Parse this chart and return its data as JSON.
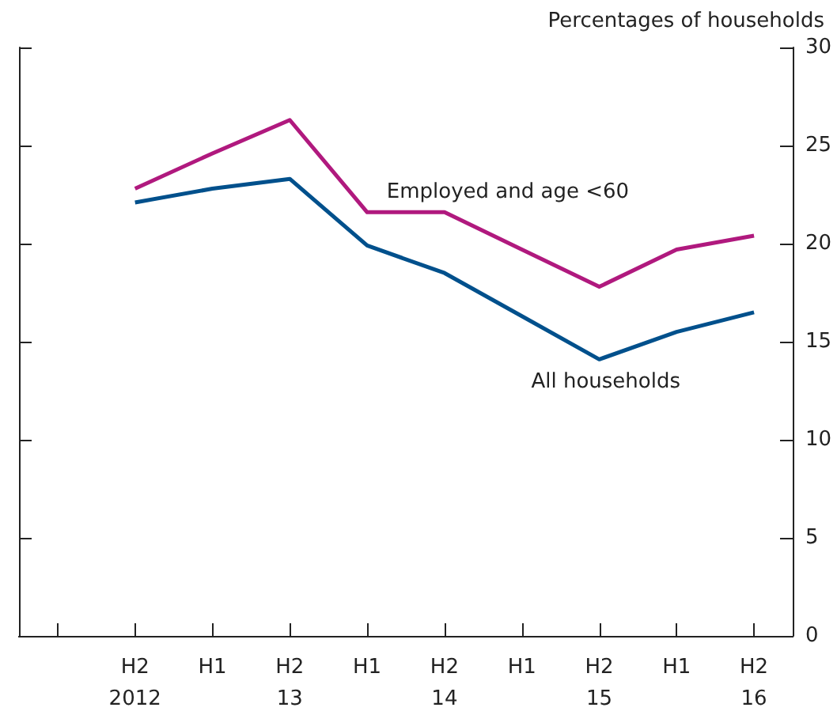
{
  "chart_data": {
    "type": "line",
    "ylabel": "Percentages of households",
    "categories": [
      null,
      "H2\n2012",
      "H1",
      "H2\n13",
      "H1",
      "H2\n14",
      "H1",
      "H2\n15",
      "H1",
      "H2\n16"
    ],
    "series": [
      {
        "name": "Employed and age <60",
        "color": "#b0197e",
        "values": [
          null,
          22.8,
          24.6,
          26.3,
          21.6,
          21.6,
          19.7,
          17.8,
          19.7,
          20.4
        ]
      },
      {
        "name": "All households",
        "color": "#00508c",
        "values": [
          null,
          22.1,
          22.8,
          23.3,
          19.9,
          18.5,
          16.3,
          14.1,
          15.5,
          16.5
        ]
      }
    ],
    "ylim": [
      0,
      30
    ],
    "yticks": [
      0,
      5,
      10,
      15,
      20,
      25,
      30
    ],
    "grid": false,
    "legend": false,
    "marker": "none",
    "line_style": "solid"
  }
}
